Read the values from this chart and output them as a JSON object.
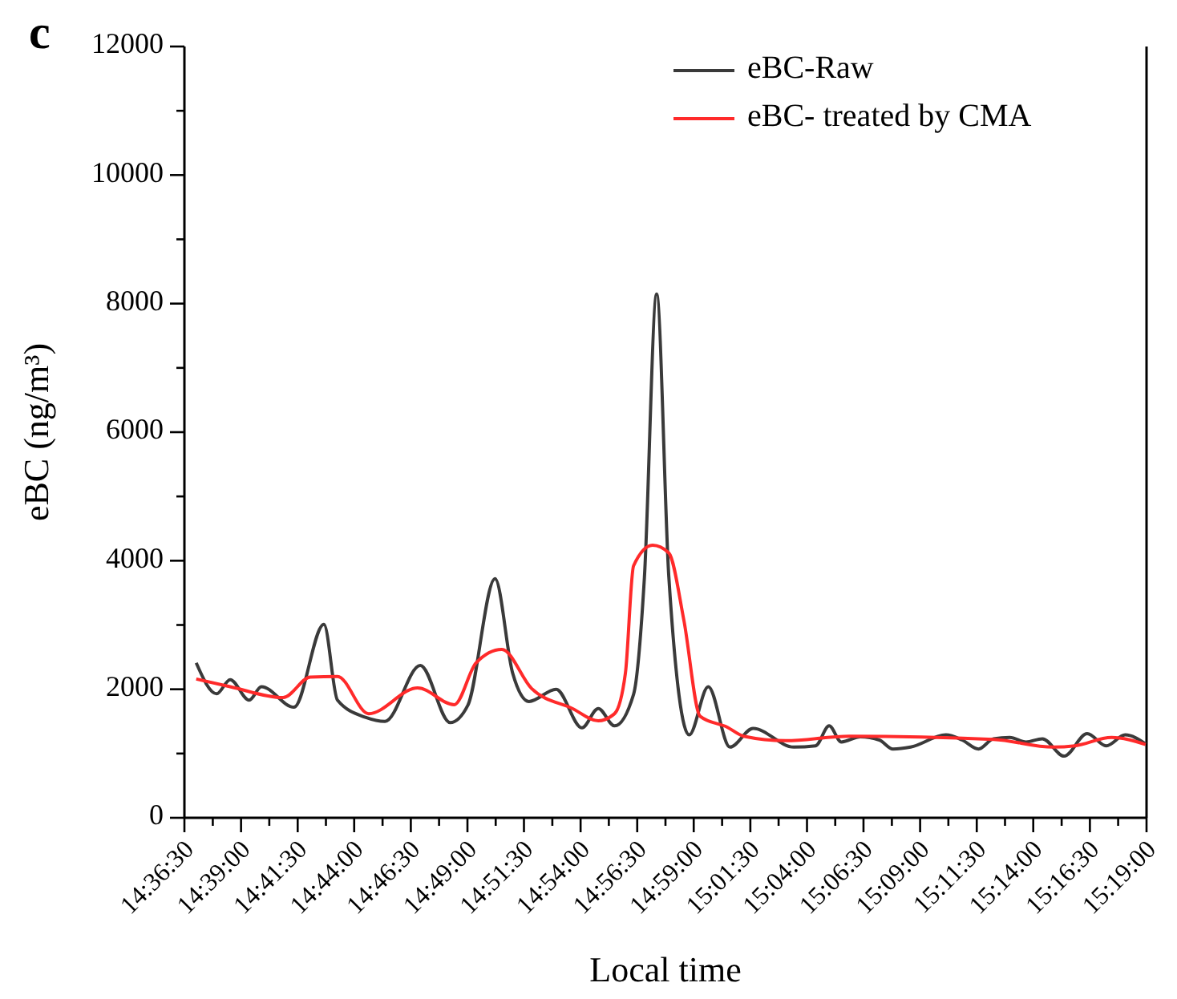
{
  "chart_data": {
    "type": "line",
    "xlabel": "Local time",
    "ylabel": "eBC (ng/m³)",
    "annotations": [
      "c"
    ],
    "xlim": [
      14.6083,
      15.3167
    ],
    "xticks": [
      {
        "value": 14.6083,
        "label": "14:36:30"
      },
      {
        "value": 14.65,
        "label": "14:39:00"
      },
      {
        "value": 14.6917,
        "label": "14:41:30"
      },
      {
        "value": 14.7333,
        "label": "14:44:00"
      },
      {
        "value": 14.775,
        "label": "14:46:30"
      },
      {
        "value": 14.8167,
        "label": "14:49:00"
      },
      {
        "value": 14.8583,
        "label": "14:51:30"
      },
      {
        "value": 14.9,
        "label": "14:54:00"
      },
      {
        "value": 14.9417,
        "label": "14:56:30"
      },
      {
        "value": 14.9833,
        "label": "14:59:00"
      },
      {
        "value": 15.025,
        "label": "15:01:30"
      },
      {
        "value": 15.0667,
        "label": "15:04:00"
      },
      {
        "value": 15.1083,
        "label": "15:06:30"
      },
      {
        "value": 15.15,
        "label": "15:09:00"
      },
      {
        "value": 15.1917,
        "label": "15:11:30"
      },
      {
        "value": 15.2333,
        "label": "15:14:00"
      },
      {
        "value": 15.275,
        "label": "15:16:30"
      },
      {
        "value": 15.3167,
        "label": "15:19:00"
      },
      {
        "value": 14.6292,
        "label": null
      },
      {
        "value": 14.6708,
        "label": null
      },
      {
        "value": 14.7125,
        "label": null
      },
      {
        "value": 14.7542,
        "label": null
      },
      {
        "value": 14.7958,
        "label": null
      },
      {
        "value": 14.8375,
        "label": null
      },
      {
        "value": 14.8792,
        "label": null
      },
      {
        "value": 14.9208,
        "label": null
      },
      {
        "value": 14.9625,
        "label": null
      },
      {
        "value": 15.0042,
        "label": null
      },
      {
        "value": 15.0458,
        "label": null
      },
      {
        "value": 15.0875,
        "label": null
      },
      {
        "value": 15.1292,
        "label": null
      },
      {
        "value": 15.1708,
        "label": null
      },
      {
        "value": 15.2125,
        "label": null
      },
      {
        "value": 15.2542,
        "label": null
      },
      {
        "value": 15.2958,
        "label": null
      }
    ],
    "ylim": [
      0,
      12000
    ],
    "yticks": [
      0,
      2000,
      4000,
      6000,
      8000,
      10000,
      12000,
      {
        "value": 1000,
        "label": null
      },
      {
        "value": 3000,
        "label": null
      },
      {
        "value": 5000,
        "label": null
      },
      {
        "value": 7000,
        "label": null
      },
      {
        "value": 9000,
        "label": null
      },
      {
        "value": 11000,
        "label": null
      }
    ],
    "grid": false,
    "legend": "top right",
    "marker": "none",
    "line_style": "solid",
    "series": [
      {
        "name": "eBC-Raw",
        "color": "#3a3a3a",
        "x": [
          14.617,
          14.632,
          14.642,
          14.656,
          14.665,
          14.689,
          14.711,
          14.721,
          14.742,
          14.756,
          14.782,
          14.804,
          14.817,
          14.837,
          14.85,
          14.862,
          14.882,
          14.901,
          14.913,
          14.925,
          14.939,
          14.947,
          14.956,
          14.965,
          14.98,
          14.994,
          15.01,
          15.027,
          15.057,
          15.073,
          15.083,
          15.092,
          15.106,
          15.12,
          15.13,
          15.143,
          15.169,
          15.181,
          15.193,
          15.204,
          15.216,
          15.228,
          15.24,
          15.256,
          15.273,
          15.287,
          15.301,
          15.316
        ],
        "values": [
          2410,
          1930,
          2150,
          1830,
          2040,
          1720,
          3010,
          1830,
          1560,
          1500,
          2370,
          1480,
          1750,
          3720,
          2250,
          1810,
          2000,
          1400,
          1700,
          1430,
          1920,
          3740,
          8150,
          3740,
          1290,
          2040,
          1100,
          1390,
          1100,
          1120,
          1430,
          1180,
          1260,
          1210,
          1070,
          1100,
          1290,
          1210,
          1070,
          1230,
          1250,
          1180,
          1230,
          960,
          1310,
          1120,
          1290,
          1150
        ]
      },
      {
        "name": "eBC- treated by CMA",
        "color": "#ff2a2a",
        "x": [
          14.617,
          14.642,
          14.681,
          14.701,
          14.721,
          14.744,
          14.78,
          14.807,
          14.823,
          14.842,
          14.864,
          14.894,
          14.913,
          14.925,
          14.933,
          14.939,
          14.953,
          14.965,
          14.976,
          14.988,
          15.008,
          15.02,
          15.051,
          15.098,
          15.204,
          15.248,
          15.264,
          15.291,
          15.316
        ],
        "values": [
          2160,
          2040,
          1870,
          2190,
          2200,
          1620,
          2020,
          1760,
          2410,
          2620,
          2010,
          1700,
          1510,
          1620,
          2250,
          3920,
          4240,
          4120,
          3080,
          1580,
          1410,
          1270,
          1200,
          1270,
          1220,
          1100,
          1120,
          1250,
          1140
        ]
      }
    ]
  }
}
